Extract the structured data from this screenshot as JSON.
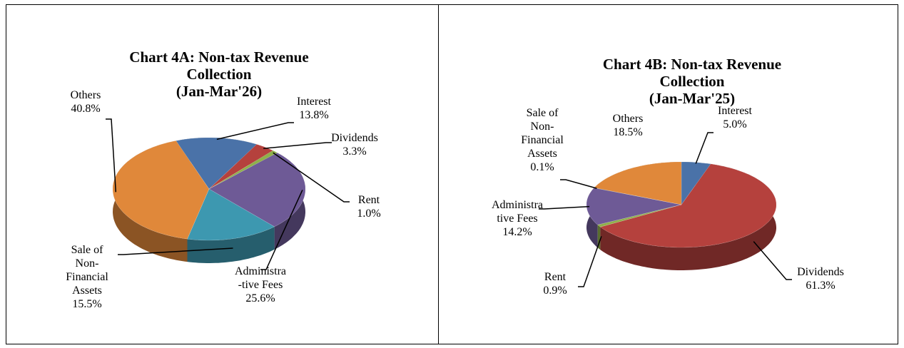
{
  "chart_data": [
    {
      "type": "pie",
      "title": "Chart 4A: Non-tax Revenue\nCollection\n(Jan-Mar'26)",
      "categories": [
        "Interest",
        "Dividends",
        "Rent",
        "Administra\n-tive Fees",
        "Sale of\nNon-\nFinancial\nAssets",
        "Others"
      ],
      "values": [
        13.8,
        3.3,
        1.0,
        25.6,
        15.5,
        40.8
      ],
      "value_labels": [
        "13.8%",
        "3.3%",
        "1.0%",
        "25.6%",
        "15.5%",
        "40.8%"
      ],
      "colors": [
        "#4a72a8",
        "#b5413d",
        "#8fb04a",
        "#6e5a96",
        "#3d98b0",
        "#e0883a"
      ]
    },
    {
      "type": "pie",
      "title": "Chart 4B: Non-tax Revenue\nCollection\n(Jan-Mar'25)",
      "categories": [
        "Interest",
        "Dividends",
        "Rent",
        "Administra\ntive Fees",
        "Sale of\nNon-\nFinancial\nAssets",
        "Others"
      ],
      "values": [
        5.0,
        61.3,
        0.9,
        14.2,
        0.1,
        18.5
      ],
      "value_labels": [
        "5.0%",
        "61.3%",
        "0.9%",
        "14.2%",
        "0.1%",
        "18.5%"
      ],
      "colors": [
        "#4a72a8",
        "#b5413d",
        "#8fb04a",
        "#6e5a96",
        "#3d98b0",
        "#e0883a"
      ]
    }
  ]
}
